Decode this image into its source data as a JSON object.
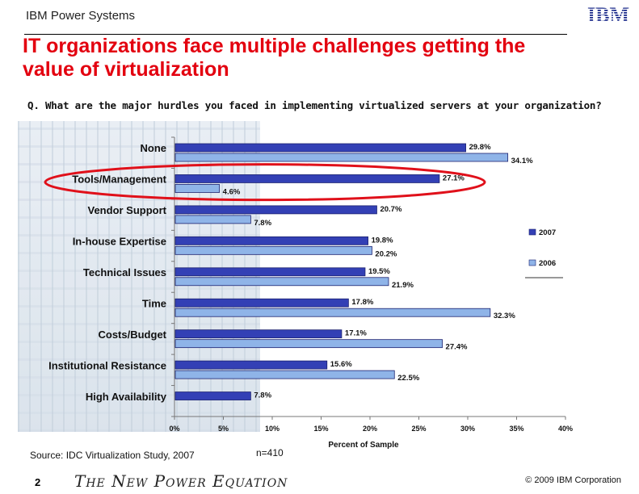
{
  "header": {
    "brand": "IBM Power Systems",
    "logo_text": "IBM",
    "title_line1": "IT organizations face multiple challenges getting the",
    "title_line2": "value of virtualization"
  },
  "question": "Q.  What are the major hurdles you faced in implementing virtualized servers at your organization?",
  "chart_data": {
    "type": "bar",
    "orientation": "horizontal",
    "categories": [
      "None",
      "Tools/Management",
      "Vendor Support",
      "In-house Expertise",
      "Technical Issues",
      "Time",
      "Costs/Budget",
      "Institutional Resistance",
      "High Availability"
    ],
    "series": [
      {
        "name": "2007",
        "values": [
          29.8,
          27.1,
          20.7,
          19.8,
          19.5,
          17.8,
          17.1,
          15.6,
          7.8
        ],
        "labels": [
          "29.8%",
          "27.1%",
          "20.7%",
          "19.8%",
          "19.5%",
          "17.8%",
          "17.1%",
          "15.6%",
          "7.8%"
        ],
        "color": "#3340b5"
      },
      {
        "name": "2006",
        "values": [
          34.1,
          4.6,
          7.8,
          20.2,
          21.9,
          32.3,
          27.4,
          22.5,
          null
        ],
        "labels": [
          "34.1%",
          "4.6%",
          "7.8%",
          "20.2%",
          "21.9%",
          "32.3%",
          "27.4%",
          "22.5%",
          ""
        ],
        "color": "#8fb4e8"
      }
    ],
    "xlim": [
      0,
      40
    ],
    "xticks": [
      "0%",
      "5%",
      "10%",
      "15%",
      "20%",
      "25%",
      "30%",
      "35%",
      "40%"
    ],
    "xlabel": "Percent of Sample",
    "legend": "right",
    "highlight_category": "Tools/Management",
    "highlight_color": "#e0101a"
  },
  "footer": {
    "source": "Source: IDC Virtualization Study, 2007",
    "sample": "n=410",
    "page": "2",
    "tagline": "The New Power Equation",
    "copyright": "© 2009 IBM Corporation"
  }
}
